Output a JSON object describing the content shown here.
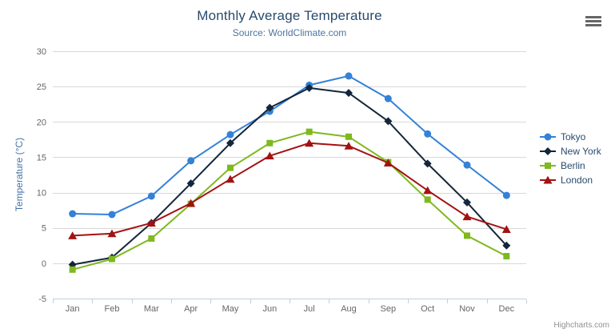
{
  "chart": {
    "title": "Monthly Average Temperature",
    "subtitle": "Source: WorldClimate.com",
    "credits": "Highcharts.com",
    "export_menu_icon": "hamburger-icon"
  },
  "colors": {
    "title": "#274b6d",
    "subtitle": "#4d759e",
    "axis_labels": "#666666",
    "y_axis_title": "#4572a7",
    "grid_line": "#d8d8d8",
    "axis_line": "#c0d0e0",
    "legend_text": "#274b6d",
    "credits_text": "#909090",
    "menu_icon": "#666666",
    "background": "#ffffff"
  },
  "chart_data": {
    "type": "line",
    "title": "Monthly Average Temperature",
    "subtitle": "Source: WorldClimate.com",
    "categories": [
      "Jan",
      "Feb",
      "Mar",
      "Apr",
      "May",
      "Jun",
      "Jul",
      "Aug",
      "Sep",
      "Oct",
      "Nov",
      "Dec"
    ],
    "series": [
      {
        "name": "Tokyo",
        "color": "#3481d8",
        "marker": "circle",
        "values": [
          7.0,
          6.9,
          9.5,
          14.5,
          18.2,
          21.5,
          25.2,
          26.5,
          23.3,
          18.3,
          13.9,
          9.6
        ]
      },
      {
        "name": "New York",
        "color": "#13263c",
        "marker": "diamond",
        "values": [
          -0.2,
          0.8,
          5.7,
          11.3,
          17.0,
          22.0,
          24.8,
          24.1,
          20.1,
          14.1,
          8.6,
          2.5
        ]
      },
      {
        "name": "Berlin",
        "color": "#7fb91e",
        "marker": "square",
        "values": [
          -0.9,
          0.6,
          3.5,
          8.4,
          13.5,
          17.0,
          18.6,
          17.9,
          14.3,
          9.0,
          3.9,
          1.0
        ]
      },
      {
        "name": "London",
        "color": "#a31212",
        "marker": "triangle",
        "values": [
          3.9,
          4.2,
          5.7,
          8.5,
          11.9,
          15.2,
          17.0,
          16.6,
          14.2,
          10.3,
          6.6,
          4.8
        ]
      }
    ],
    "xlabel": "",
    "ylabel": "Temperature (°C)",
    "ylim": [
      -5,
      30
    ],
    "ytick_step": 5,
    "grid": true,
    "legend_position": "right"
  }
}
